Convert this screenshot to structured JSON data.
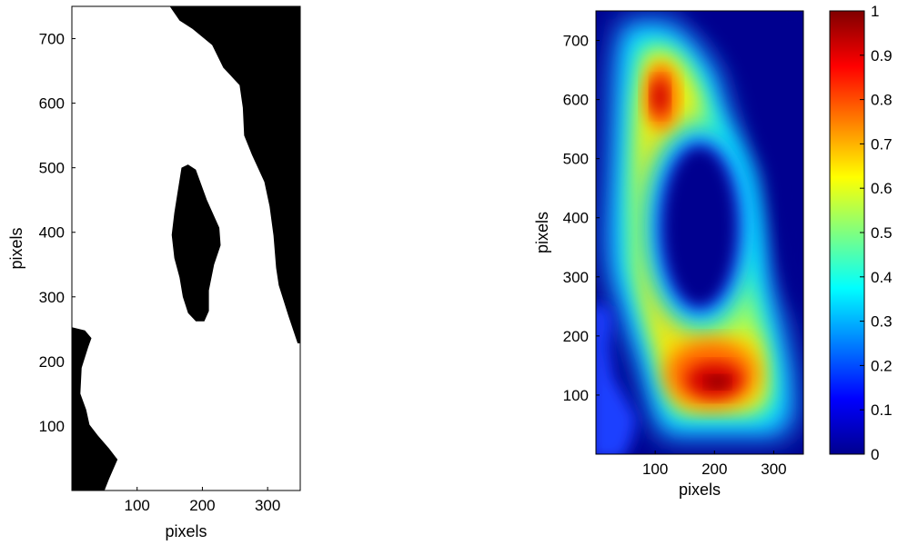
{
  "chart_data": [
    {
      "type": "heatmap",
      "variant": "binary mask",
      "xlabel": "pixels",
      "ylabel": "pixels",
      "xlim": [
        0,
        350
      ],
      "ylim": [
        0,
        750
      ],
      "xticks": [
        100,
        200,
        300
      ],
      "yticks": [
        100,
        200,
        300,
        400,
        500,
        600,
        700
      ],
      "colors": {
        "region": "#000000",
        "background": "#ffffff"
      },
      "regions": [
        {
          "name": "upper-right black region",
          "boundary": [
            [
              150,
              750
            ],
            [
              165,
              728
            ],
            [
              185,
              715
            ],
            [
              215,
              690
            ],
            [
              232,
              655
            ],
            [
              257,
              628
            ],
            [
              262,
              593
            ],
            [
              264,
              550
            ],
            [
              276,
              520
            ],
            [
              295,
              478
            ],
            [
              303,
              440
            ],
            [
              309,
              395
            ],
            [
              313,
              345
            ],
            [
              317,
              318
            ],
            [
              332,
              270
            ],
            [
              346,
              228
            ],
            [
              350,
              228
            ],
            [
              350,
              750
            ]
          ]
        },
        {
          "name": "central black blob",
          "boundary": [
            [
              168,
              500
            ],
            [
              178,
              505
            ],
            [
              190,
              497
            ],
            [
              207,
              450
            ],
            [
              226,
              407
            ],
            [
              228,
              380
            ],
            [
              218,
              350
            ],
            [
              210,
              310
            ],
            [
              210,
              278
            ],
            [
              203,
              262
            ],
            [
              190,
              262
            ],
            [
              178,
              275
            ],
            [
              170,
              300
            ],
            [
              165,
              330
            ],
            [
              157,
              360
            ],
            [
              153,
              396
            ],
            [
              157,
              430
            ],
            [
              162,
              462
            ]
          ]
        },
        {
          "name": "lower-left black region",
          "boundary": [
            [
              0,
              0
            ],
            [
              50,
              0
            ],
            [
              57,
              18
            ],
            [
              70,
              48
            ],
            [
              57,
              65
            ],
            [
              40,
              85
            ],
            [
              27,
              102
            ],
            [
              22,
              125
            ],
            [
              13,
              150
            ],
            [
              15,
              190
            ],
            [
              25,
              222
            ],
            [
              30,
              236
            ],
            [
              20,
              248
            ],
            [
              0,
              253
            ]
          ]
        }
      ]
    },
    {
      "type": "heatmap",
      "variant": "distance map",
      "xlabel": "pixels",
      "ylabel": "pixels",
      "xlim": [
        0,
        350
      ],
      "ylim": [
        0,
        750
      ],
      "xticks": [
        100,
        200,
        300
      ],
      "yticks": [
        100,
        200,
        300,
        400,
        500,
        600,
        700
      ],
      "colormap": "jet",
      "colorbar": {
        "range": [
          0,
          1
        ],
        "ticks": [
          "0",
          "0.1",
          "0.2",
          "0.3",
          "0.4",
          "0.5",
          "0.6",
          "0.7",
          "0.8",
          "0.9",
          "1"
        ],
        "position": "right"
      },
      "peaks": [
        {
          "x": 200,
          "y": 120,
          "value": 1.0
        },
        {
          "x": 100,
          "y": 610,
          "value": 0.9
        }
      ]
    }
  ]
}
